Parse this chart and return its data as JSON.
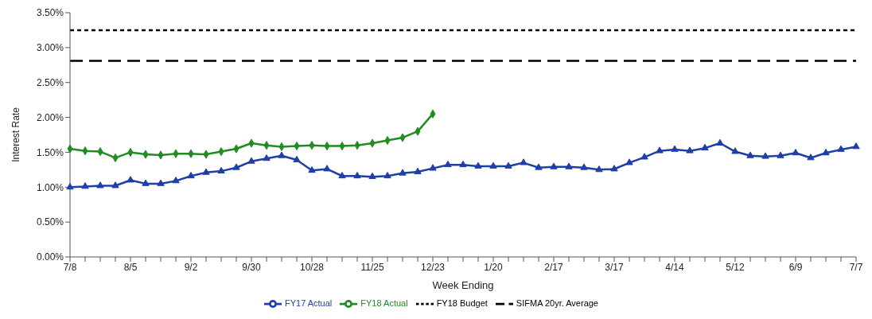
{
  "chart_data": {
    "type": "line",
    "xlabel": "Week Ending",
    "ylabel": "Interest Rate",
    "categories": [
      "7/8",
      null,
      null,
      null,
      "8/5",
      null,
      null,
      null,
      "9/2",
      null,
      null,
      null,
      "9/30",
      null,
      null,
      null,
      "10/28",
      null,
      null,
      null,
      "11/25",
      null,
      null,
      null,
      "12/23",
      null,
      null,
      null,
      "1/20",
      null,
      null,
      null,
      "2/17",
      null,
      null,
      null,
      "3/17",
      null,
      null,
      null,
      "4/14",
      null,
      null,
      null,
      "5/12",
      null,
      null,
      null,
      "6/9",
      null,
      null,
      null,
      "7/7"
    ],
    "series": [
      {
        "name": "FY18 Budget",
        "color": "#000000",
        "line_style": "dashed",
        "marker": "none",
        "values": [
          3.25,
          3.25,
          3.25,
          3.25,
          3.25,
          3.25,
          3.25,
          3.25,
          3.25,
          3.25,
          3.25,
          3.25,
          3.25,
          3.25,
          3.25,
          3.25,
          3.25,
          3.25,
          3.25,
          3.25,
          3.25,
          3.25,
          3.25,
          3.25,
          3.25,
          3.25,
          3.25,
          3.25,
          3.25,
          3.25,
          3.25,
          3.25,
          3.25,
          3.25,
          3.25,
          3.25,
          3.25,
          3.25,
          3.25,
          3.25,
          3.25,
          3.25,
          3.25,
          3.25,
          3.25,
          3.25,
          3.25,
          3.25,
          3.25,
          3.25,
          3.25,
          3.25,
          3.25
        ]
      },
      {
        "name": "FY18 Actual",
        "color": "#228b22",
        "line_style": "solid",
        "marker": "diamond",
        "values": [
          1.55,
          1.52,
          1.51,
          1.42,
          1.5,
          1.47,
          1.46,
          1.48,
          1.48,
          1.47,
          1.51,
          1.55,
          1.63,
          1.6,
          1.58,
          1.59,
          1.6,
          1.59,
          1.59,
          1.6,
          1.63,
          1.67,
          1.71,
          1.8,
          2.05,
          null,
          null,
          null,
          null,
          null,
          null,
          null,
          null,
          null,
          null,
          null,
          null,
          null,
          null,
          null,
          null,
          null,
          null,
          null,
          null,
          null,
          null,
          null,
          null,
          null,
          null,
          null,
          null
        ]
      },
      {
        "name": "FY17 Actual",
        "color": "#1f3fa8",
        "line_style": "solid",
        "marker": "triangle",
        "values": [
          1.0,
          1.01,
          1.02,
          1.02,
          1.1,
          1.05,
          1.05,
          1.09,
          1.16,
          1.21,
          1.23,
          1.28,
          1.37,
          1.41,
          1.45,
          1.39,
          1.24,
          1.26,
          1.16,
          1.16,
          1.15,
          1.16,
          1.2,
          1.22,
          1.27,
          1.32,
          1.32,
          1.3,
          1.3,
          1.3,
          1.35,
          1.28,
          1.29,
          1.29,
          1.28,
          1.25,
          1.26,
          1.35,
          1.43,
          1.52,
          1.54,
          1.52,
          1.56,
          1.63,
          1.51,
          1.45,
          1.44,
          1.45,
          1.49,
          1.42,
          1.49,
          1.54,
          1.58
        ]
      },
      {
        "name": "SIFMA 20yr. Average",
        "color": "#000000",
        "line_style": "dashed",
        "marker": "none",
        "values": [
          2.81,
          2.81,
          2.81,
          2.81,
          2.81,
          2.81,
          2.81,
          2.81,
          2.81,
          2.81,
          2.81,
          2.81,
          2.81,
          2.81,
          2.81,
          2.81,
          2.81,
          2.81,
          2.81,
          2.81,
          2.81,
          2.81,
          2.81,
          2.81,
          2.81,
          2.81,
          2.81,
          2.81,
          2.81,
          2.81,
          2.81,
          2.81,
          2.81,
          2.81,
          2.81,
          2.81,
          2.81,
          2.81,
          2.81,
          2.81,
          2.81,
          2.81,
          2.81,
          2.81,
          2.81,
          2.81,
          2.81,
          2.81,
          2.81,
          2.81,
          2.81,
          2.81,
          2.81
        ]
      }
    ],
    "ylim": [
      0,
      3.5
    ],
    "yticks": [
      {
        "value": 0,
        "label": "0.00%"
      },
      {
        "value": 0.5,
        "label": "0.50%"
      },
      {
        "value": 1,
        "label": "1.00%"
      },
      {
        "value": 1.5,
        "label": "1.50%"
      },
      {
        "value": 2,
        "label": "2.00%"
      },
      {
        "value": 2.5,
        "label": "2.50%"
      },
      {
        "value": 3,
        "label": "3.00%"
      },
      {
        "value": 3.5,
        "label": "3.50%"
      }
    ],
    "grid": false,
    "legend": "bottom"
  }
}
